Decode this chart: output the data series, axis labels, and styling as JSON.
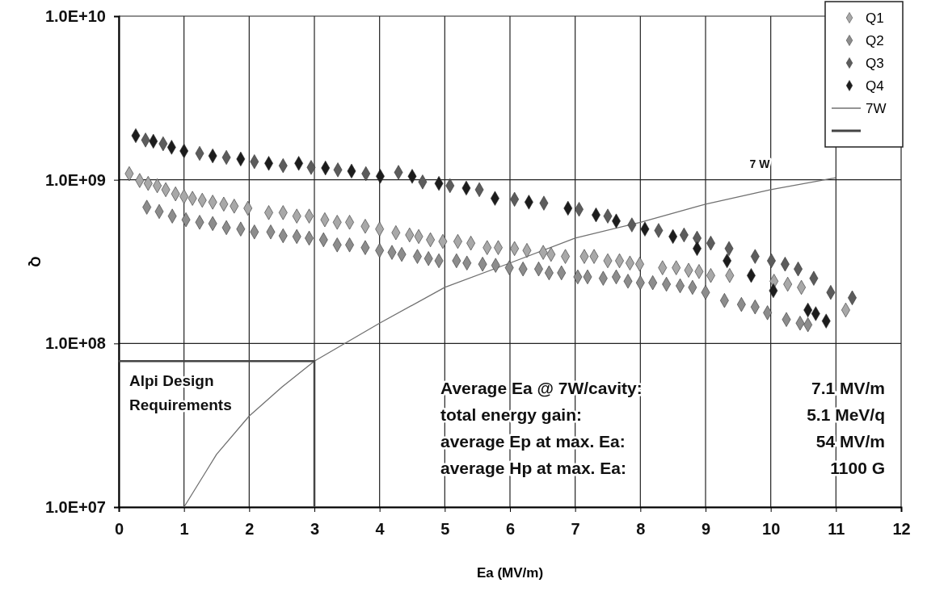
{
  "chart_data": {
    "type": "scatter",
    "xlabel": "Ea (MV/m)",
    "ylabel": "Q",
    "log": true,
    "grid": true,
    "legend": "top right",
    "marker": "diamond",
    "xlim": [
      0,
      12
    ],
    "xticks": [
      0,
      1,
      2,
      3,
      4,
      5,
      6,
      7,
      8,
      9,
      10,
      11,
      12
    ],
    "ylim": [
      10000000.0,
      10000000000.0
    ],
    "yticks": [
      {
        "value": 10000000.0,
        "label": "1.0E+07"
      },
      {
        "value": 100000000.0,
        "label": "1.0E+08"
      },
      {
        "value": 1000000000.0,
        "label": "1.0E+09"
      },
      {
        "value": 10000000000.0,
        "label": "1.0E+10"
      }
    ],
    "series": [
      {
        "name": "Q1",
        "color": "#a8a8a8",
        "x": [
          0.16,
          0.32,
          0.45,
          0.59,
          0.72,
          0.87,
          1.0,
          1.13,
          1.28,
          1.44,
          1.61,
          1.77,
          1.98,
          2.3,
          2.52,
          2.73,
          2.92,
          3.16,
          3.35,
          3.54,
          3.78,
          4.0,
          4.25,
          4.46,
          4.6,
          4.78,
          4.97,
          5.2,
          5.4,
          5.65,
          5.82,
          6.07,
          6.26,
          6.51,
          6.63,
          6.85,
          7.14,
          7.29,
          7.5,
          7.68,
          7.84,
          7.99,
          8.34,
          8.55,
          8.74,
          8.9,
          9.08,
          9.37,
          9.67,
          10.05,
          10.26,
          10.47,
          10.92,
          11.15
        ],
        "values": [
          1090000000.0,
          990000000.0,
          950000000.0,
          920000000.0,
          870000000.0,
          820000000.0,
          790000000.0,
          770000000.0,
          750000000.0,
          730000000.0,
          710000000.0,
          690000000.0,
          670000000.0,
          630000000.0,
          630000000.0,
          600000000.0,
          600000000.0,
          570000000.0,
          550000000.0,
          550000000.0,
          520000000.0,
          500000000.0,
          475000000.0,
          460000000.0,
          450000000.0,
          430000000.0,
          420000000.0,
          420000000.0,
          410000000.0,
          385000000.0,
          385000000.0,
          380000000.0,
          370000000.0,
          360000000.0,
          350000000.0,
          340000000.0,
          340000000.0,
          340000000.0,
          320000000.0,
          320000000.0,
          310000000.0,
          305000000.0,
          290000000.0,
          290000000.0,
          280000000.0,
          275000000.0,
          260000000.0,
          260000000.0,
          null,
          240000000.0,
          230000000.0,
          220000000.0,
          null,
          160000000.0
        ]
      },
      {
        "name": "Q2",
        "color": "#8c8c8c",
        "x": [
          0.43,
          0.62,
          0.82,
          1.03,
          1.24,
          1.44,
          1.65,
          1.87,
          2.08,
          2.33,
          2.52,
          2.73,
          2.92,
          3.14,
          3.35,
          3.54,
          3.78,
          4.0,
          4.19,
          4.34,
          4.58,
          4.75,
          4.91,
          5.18,
          5.34,
          5.58,
          5.78,
          5.99,
          6.2,
          6.44,
          6.6,
          6.79,
          7.04,
          7.19,
          7.43,
          7.63,
          7.81,
          8.0,
          8.19,
          8.4,
          8.61,
          8.8,
          9.0,
          9.29,
          9.55,
          9.76,
          9.95,
          10.24,
          10.45,
          10.57
        ],
        "values": [
          680000000.0,
          640000000.0,
          600000000.0,
          570000000.0,
          550000000.0,
          540000000.0,
          510000000.0,
          500000000.0,
          480000000.0,
          480000000.0,
          455000000.0,
          450000000.0,
          440000000.0,
          430000000.0,
          400000000.0,
          400000000.0,
          385000000.0,
          370000000.0,
          360000000.0,
          350000000.0,
          340000000.0,
          330000000.0,
          320000000.0,
          320000000.0,
          310000000.0,
          305000000.0,
          300000000.0,
          290000000.0,
          285000000.0,
          285000000.0,
          270000000.0,
          270000000.0,
          255000000.0,
          255000000.0,
          250000000.0,
          255000000.0,
          240000000.0,
          235000000.0,
          235000000.0,
          230000000.0,
          225000000.0,
          220000000.0,
          205000000.0,
          183000000.0,
          173000000.0,
          167000000.0,
          154000000.0,
          140000000.0,
          133000000.0,
          130000000.0
        ]
      },
      {
        "name": "Q3",
        "color": "#5c5c5c",
        "x": [
          0.41,
          0.68,
          1.24,
          1.65,
          2.08,
          2.52,
          2.95,
          3.36,
          3.79,
          4.29,
          4.66,
          5.08,
          5.53,
          6.07,
          6.52,
          7.06,
          7.5,
          7.87,
          8.28,
          8.67,
          8.87,
          9.08,
          9.36,
          9.76,
          10.01,
          10.22,
          10.42,
          10.66,
          10.92,
          11.25
        ],
        "values": [
          1750000000.0,
          1660000000.0,
          1450000000.0,
          1370000000.0,
          1290000000.0,
          1220000000.0,
          1190000000.0,
          1150000000.0,
          1090000000.0,
          1110000000.0,
          970000000.0,
          920000000.0,
          870000000.0,
          760000000.0,
          720000000.0,
          660000000.0,
          600000000.0,
          530000000.0,
          490000000.0,
          460000000.0,
          440000000.0,
          410000000.0,
          380000000.0,
          340000000.0,
          320000000.0,
          305000000.0,
          285000000.0,
          250000000.0,
          205000000.0,
          190000000.0
        ]
      },
      {
        "name": "Q4",
        "color": "#1c1c1c",
        "x": [
          0.26,
          0.53,
          0.81,
          1.0,
          1.44,
          1.87,
          2.3,
          2.76,
          3.17,
          3.57,
          4.01,
          4.5,
          4.91,
          5.33,
          5.77,
          6.29,
          6.89,
          7.32,
          7.63,
          8.07,
          8.5,
          8.87,
          9.33,
          9.7,
          10.04,
          10.57,
          10.69,
          10.85
        ],
        "values": [
          1860000000.0,
          1720000000.0,
          1580000000.0,
          1500000000.0,
          1400000000.0,
          1340000000.0,
          1260000000.0,
          1260000000.0,
          1180000000.0,
          1130000000.0,
          1050000000.0,
          1050000000.0,
          950000000.0,
          890000000.0,
          770000000.0,
          730000000.0,
          670000000.0,
          610000000.0,
          560000000.0,
          500000000.0,
          450000000.0,
          380000000.0,
          320000000.0,
          260000000.0,
          210000000.0,
          160000000.0,
          152000000.0,
          137000000.0
        ]
      },
      {
        "name": "7W",
        "type": "line",
        "marker": "none",
        "color": "#707070",
        "x": [
          1,
          1.5,
          2,
          2.5,
          3,
          4,
          5,
          6,
          7,
          8,
          9,
          10,
          11
        ],
        "values": [
          10000000.0,
          21000000.0,
          36000000.0,
          54000000.0,
          78000000.0,
          133000000.0,
          220000000.0,
          310000000.0,
          440000000.0,
          550000000.0,
          710000000.0,
          870000000.0,
          1030000000.0
        ]
      },
      {
        "type": "line",
        "marker": "none",
        "color": "#444444",
        "x": [
          0,
          3,
          3
        ],
        "values": [
          78000000.0,
          78000000.0,
          10000000.0
        ]
      }
    ],
    "annotations": [
      "7 W",
      "Alpi Design\nRequirements",
      "Average Ea @ 7W/cavity:",
      "7.1 MV/m",
      "total energy gain:",
      "5.1 MeV/q",
      "average Ep at max. Ea:",
      "54 MV/m",
      "average Hp at max. Ea:",
      "1100 G"
    ]
  }
}
